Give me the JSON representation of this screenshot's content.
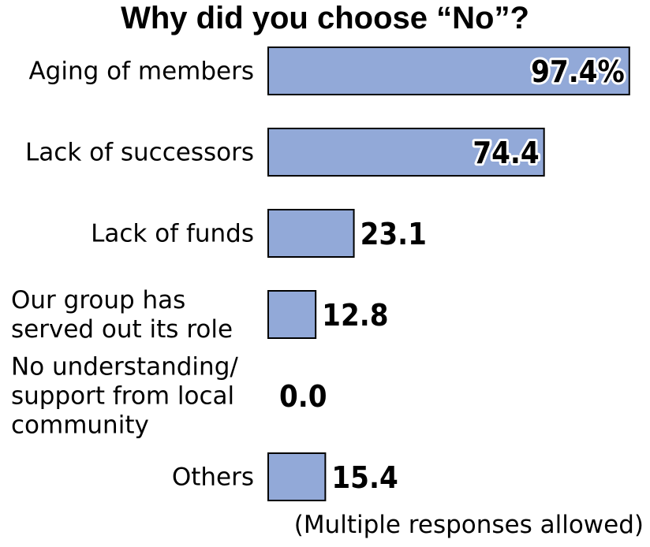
{
  "chart_data": {
    "type": "bar",
    "orientation": "horizontal",
    "title": "Why did you choose “No”?",
    "categories": [
      "Aging of members",
      "Lack of successors",
      "Lack of funds",
      "Our group has served out its role",
      "No understanding/ support from local community",
      "Others"
    ],
    "category_lines": [
      [
        "Aging of members"
      ],
      [
        "Lack of successors"
      ],
      [
        "Lack of funds"
      ],
      [
        "Our group has",
        "served out its role"
      ],
      [
        "No understanding/",
        "support from local",
        "community"
      ],
      [
        "Others"
      ]
    ],
    "values": [
      97.4,
      74.4,
      23.1,
      12.8,
      0.0,
      15.4
    ],
    "value_labels": [
      "97.4%",
      "74.4",
      "23.1",
      "12.8",
      "0.0",
      "15.4"
    ],
    "xlim": [
      0,
      100
    ],
    "grid": false,
    "legend": "none",
    "bar_color": "#92a9d8",
    "bar_edge_color": "#000000",
    "note": "(Multiple responses allowed)"
  }
}
